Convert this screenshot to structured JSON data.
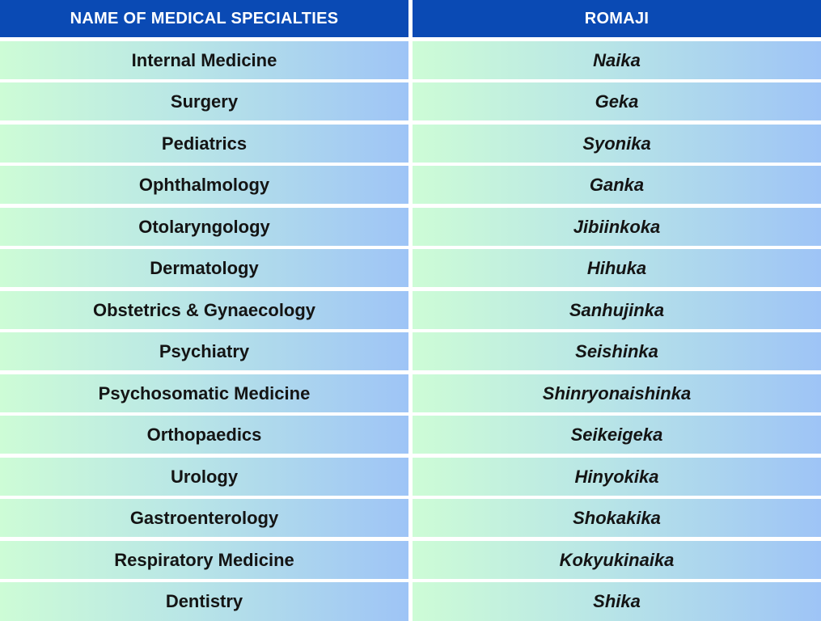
{
  "table": {
    "headers": [
      "NAME OF MEDICAL SPECIALTIES",
      "ROMAJI"
    ],
    "rows": [
      [
        "Internal Medicine",
        "Naika"
      ],
      [
        "Surgery",
        "Geka"
      ],
      [
        "Pediatrics",
        "Syonika"
      ],
      [
        "Ophthalmology",
        "Ganka"
      ],
      [
        "Otolaryngology",
        "Jibiinkoka"
      ],
      [
        "Dermatology",
        "Hihuka"
      ],
      [
        "Obstetrics & Gynaecology",
        "Sanhujinka"
      ],
      [
        "Psychiatry",
        "Seishinka"
      ],
      [
        "Psychosomatic Medicine",
        "Shinryonaishinka"
      ],
      [
        "Orthopaedics",
        "Seikeigeka"
      ],
      [
        "Urology",
        "Hinyokika"
      ],
      [
        "Gastroenterology",
        "Shokakika"
      ],
      [
        "Respiratory Medicine",
        "Kokyukinaika"
      ],
      [
        "Dentistry",
        "Shika"
      ]
    ]
  },
  "colors": {
    "header_bg": "#0a4ab4",
    "header_text": "#ffffff",
    "row_gradient_start": "#cdfcd6",
    "row_gradient_end": "#9ec4f6",
    "divider": "#ffffff"
  }
}
